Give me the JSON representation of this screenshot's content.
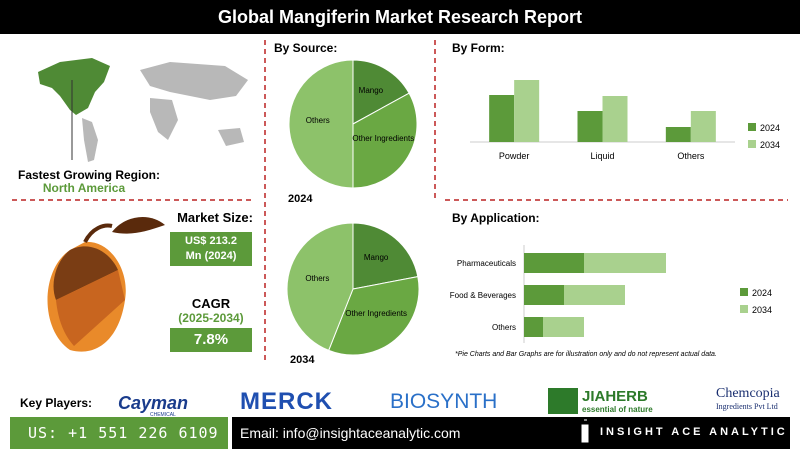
{
  "header": {
    "title": "Global Mangiferin Market Research Report"
  },
  "region": {
    "label": "Fastest Growing Region:",
    "value": "North America"
  },
  "market_size": {
    "label": "Market Size:",
    "lines": [
      "US$ 213.2",
      "Mn (2024)"
    ]
  },
  "cagr": {
    "label": "CAGR",
    "period": "(2025-2034)",
    "value": "7.8%"
  },
  "chart_data": [
    {
      "type": "pie",
      "title": "By Source:",
      "subtitle": "2024",
      "categories": [
        "Mango",
        "Other Ingredients",
        "Others"
      ],
      "values": [
        17,
        33,
        50
      ],
      "colors": [
        "#4f8a35",
        "#6aa843",
        "#8dc26a"
      ]
    },
    {
      "type": "pie",
      "subtitle": "2034",
      "categories": [
        "Mango",
        "Other Ingredients",
        "Others"
      ],
      "values": [
        22,
        34,
        44
      ],
      "colors": [
        "#4f8a35",
        "#6aa843",
        "#8dc26a"
      ]
    },
    {
      "type": "bar",
      "title": "By Form:",
      "categories": [
        "Powder",
        "Liquid",
        "Others"
      ],
      "series": [
        {
          "name": "2024",
          "color": "#5c9a3a",
          "values": [
            47,
            31,
            15
          ]
        },
        {
          "name": "2034",
          "color": "#a9d18e",
          "values": [
            62,
            46,
            31
          ]
        }
      ],
      "legend": "right"
    },
    {
      "type": "barh",
      "stacked": true,
      "title": "By Application:",
      "categories": [
        "Pharmaceuticals",
        "Food & Beverages",
        "Others"
      ],
      "series": [
        {
          "name": "2024",
          "color": "#5c9a3a",
          "values": [
            60,
            40,
            19
          ]
        },
        {
          "name": "2034",
          "color": "#a9d18e",
          "values": [
            82,
            61,
            41
          ]
        }
      ],
      "legend": "right"
    }
  ],
  "note": "*Pie Charts and Bar Graphs are for illustration only and do not represent actual data.",
  "key_players": {
    "label": "Key Players:",
    "names": [
      "Cayman",
      "MERCK",
      "BIOSYNTH",
      "JIAHERB",
      "Chemcopia"
    ],
    "taglines": [
      "CHEMICAL",
      "essential of nature",
      "Ingredients Pvt Ltd"
    ]
  },
  "footer": {
    "phone": "US: +1 551 226 6109",
    "email": "Email: info@insightaceanalytic.com",
    "brand": "INSIGHT ACE ANALYTIC"
  }
}
